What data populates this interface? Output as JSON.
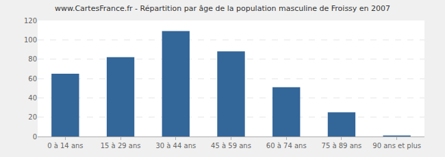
{
  "chart_data": {
    "type": "bar",
    "title": "www.CartesFrance.fr - Répartition par âge de la population masculine de Froissy en 2007",
    "categories": [
      "0 à 14 ans",
      "15 à 29 ans",
      "30 à 44 ans",
      "45 à 59 ans",
      "60 à 74 ans",
      "75 à 89 ans",
      "90 ans et plus"
    ],
    "values": [
      65,
      82,
      109,
      88,
      51,
      25,
      1
    ],
    "color": "#336699",
    "ylim": [
      0,
      120
    ],
    "yticks": [
      0,
      20,
      40,
      60,
      80,
      100,
      120
    ],
    "grid": true
  }
}
